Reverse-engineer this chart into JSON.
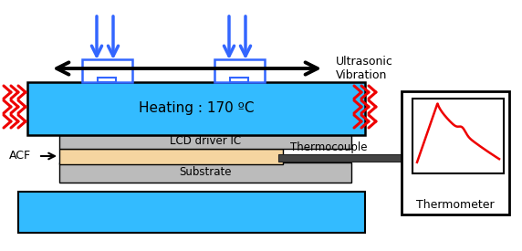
{
  "fig_width": 5.72,
  "fig_height": 2.75,
  "dpi": 100,
  "bg_color": "#ffffff",
  "cyan_color": "#33bbff",
  "gray_color": "#bbbbbb",
  "acf_color": "#f5d5a0",
  "red_color": "#ee0000",
  "blue_color": "#3366ff",
  "black_color": "#000000",
  "heating_label": "Heating : 170 ºC",
  "lcd_label": "LCD driver IC",
  "substrate_label": "Substrate",
  "acf_label": "ACF",
  "thermocouple_label": "Thermocouple",
  "thermometer_label": "Thermometer",
  "ultrasonic_label": "Ultrasonic\nVibration"
}
